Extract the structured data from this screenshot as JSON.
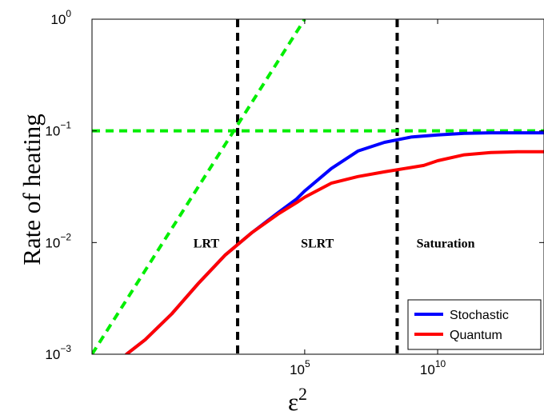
{
  "chart_data": {
    "type": "line",
    "title": "",
    "xlabel": "ε",
    "xlabel_superscript": "2",
    "ylabel": "Rate of heating",
    "x_scale": "log",
    "y_scale": "log",
    "xlim": [
      0.001,
      100000000000000.0
    ],
    "ylim": [
      0.001,
      1
    ],
    "grid": false,
    "legend_position": "bottom-right",
    "x_ticks": [
      {
        "value": 100000.0,
        "base": "10",
        "exp": "5"
      },
      {
        "value": 10000000000.0,
        "base": "10",
        "exp": "10"
      }
    ],
    "y_ticks": [
      {
        "value": 0.001,
        "base": "10",
        "exp": "−3"
      },
      {
        "value": 0.01,
        "base": "10",
        "exp": "−2"
      },
      {
        "value": 0.1,
        "base": "10",
        "exp": "−1"
      },
      {
        "value": 1,
        "base": "10",
        "exp": "0"
      }
    ],
    "series": [
      {
        "name": "Stochastic",
        "color": "#0000ff",
        "style": "solid",
        "x": [
          0.02,
          0.1,
          1,
          10,
          100,
          1000,
          10000,
          50000,
          100000,
          1000000,
          10000000,
          100000000,
          1000000000,
          10000000000,
          100000000000,
          1000000000000,
          10000000000000,
          100000000000000
        ],
        "y": [
          0.001,
          0.00135,
          0.0023,
          0.0043,
          0.0077,
          0.0122,
          0.0185,
          0.0246,
          0.029,
          0.046,
          0.066,
          0.079,
          0.088,
          0.092,
          0.095,
          0.096,
          0.096,
          0.096
        ]
      },
      {
        "name": "Quantum",
        "color": "#ff0000",
        "style": "solid",
        "x": [
          0.02,
          0.1,
          1,
          10,
          100,
          1000,
          10000,
          50000,
          100000,
          1000000,
          10000000,
          100000000,
          1000000000,
          3000000000,
          10000000000,
          100000000000,
          1000000000000,
          10000000000000,
          100000000000000
        ],
        "y": [
          0.001,
          0.00135,
          0.0023,
          0.0043,
          0.0077,
          0.0122,
          0.018,
          0.0228,
          0.0255,
          0.034,
          0.039,
          0.043,
          0.047,
          0.049,
          0.054,
          0.061,
          0.064,
          0.065,
          0.065
        ]
      }
    ],
    "reference_lines": [
      {
        "kind": "vertical",
        "x": 300,
        "color": "#000000",
        "style": "dashed"
      },
      {
        "kind": "vertical",
        "x": 300000000,
        "color": "#000000",
        "style": "dashed"
      },
      {
        "kind": "horizontal",
        "y": 0.1,
        "color": "#00ee00",
        "style": "dashed"
      },
      {
        "kind": "line",
        "points": [
          [
            0.001,
            0.001
          ],
          [
            100000,
            1
          ]
        ],
        "color": "#00ee00",
        "style": "dashed"
      }
    ],
    "annotations": [
      {
        "text": "LRT",
        "x": 20,
        "y": 0.009
      },
      {
        "text": "SLRT",
        "x": 300000,
        "y": 0.009
      },
      {
        "text": "Saturation",
        "x": 20000000000,
        "y": 0.009
      }
    ]
  }
}
